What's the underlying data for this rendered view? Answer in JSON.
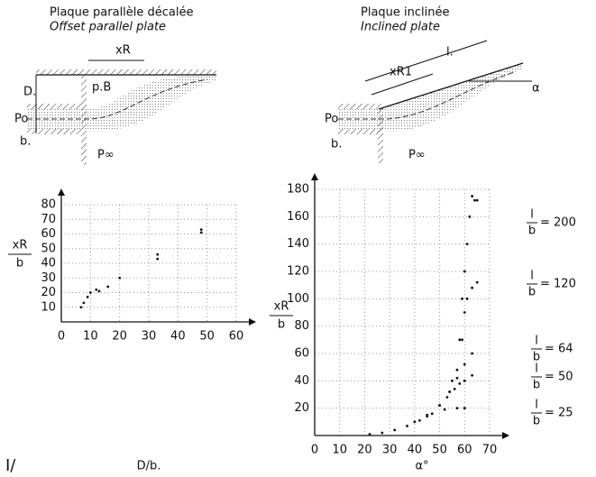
{
  "chart_data": [
    {
      "type": "scatter",
      "diagram_title": "Plaque parallèle décalée",
      "diagram_subtitle": "Offset parallel plate",
      "diagram_labels": [
        "xR",
        "D.",
        "p.B",
        "Po",
        "b.",
        "P∞"
      ],
      "xlabel": "D/b.",
      "ylabel_numerator": "xR",
      "ylabel_denominator": "b",
      "xlim": [
        0,
        60
      ],
      "xticks": [
        0,
        10,
        20,
        30,
        40,
        50,
        60
      ],
      "ylim": [
        0,
        80
      ],
      "yticks": [
        10,
        20,
        30,
        40,
        50,
        60,
        70,
        80
      ],
      "grid": true,
      "series": [
        {
          "name": null,
          "color": "#111111",
          "x": [
            6.8,
            7.7,
            9,
            10,
            12,
            13,
            16,
            20,
            33,
            33,
            48,
            48
          ],
          "values": [
            10,
            13,
            17,
            20,
            22,
            21,
            24,
            30,
            43,
            46,
            61,
            63
          ]
        }
      ]
    },
    {
      "type": "scatter",
      "diagram_title": "Plaque inclinée",
      "diagram_subtitle": "Inclined plate",
      "diagram_labels": [
        "l.",
        "xR1",
        "α",
        "Po",
        "b.",
        "P∞"
      ],
      "xlabel": "α°",
      "ylabel_numerator": "xR",
      "ylabel_denominator": "b",
      "series_label_numerator": "l",
      "series_label_denominator": "b",
      "xlim": [
        0,
        70
      ],
      "xticks": [
        0,
        10,
        20,
        30,
        40,
        50,
        60,
        70
      ],
      "ylim": [
        0,
        180
      ],
      "yticks": [
        20,
        40,
        60,
        80,
        100,
        120,
        140,
        160,
        180
      ],
      "grid": true,
      "series": [
        {
          "name": "= 200",
          "color": "#111111",
          "x": [
            50,
            55,
            58,
            59,
            60,
            61,
            62,
            63,
            64,
            65
          ],
          "values": [
            22,
            40,
            70,
            100,
            120,
            140,
            160,
            175,
            172,
            172
          ]
        },
        {
          "name": "= 120",
          "color": "#111111",
          "x": [
            50,
            54,
            57,
            59,
            60,
            61,
            63,
            65
          ],
          "values": [
            22,
            32,
            48,
            70,
            90,
            100,
            108,
            112
          ]
        },
        {
          "name": "= 64",
          "color": "#111111",
          "x": [
            45,
            50,
            54,
            57,
            60,
            63
          ],
          "values": [
            14,
            22,
            32,
            42,
            52,
            60
          ]
        },
        {
          "name": "= 50",
          "color": "#111111",
          "x": [
            40,
            45,
            50,
            53,
            56,
            58,
            60,
            63
          ],
          "values": [
            10,
            15,
            22,
            28,
            34,
            38,
            40,
            44
          ]
        },
        {
          "name": "= 25",
          "color": "#111111",
          "x": [
            22,
            27,
            32,
            37,
            42,
            47,
            52,
            57,
            60
          ],
          "values": [
            1,
            2,
            4,
            7,
            11,
            16,
            19,
            20,
            20
          ]
        }
      ]
    }
  ],
  "page_mark": "I/"
}
